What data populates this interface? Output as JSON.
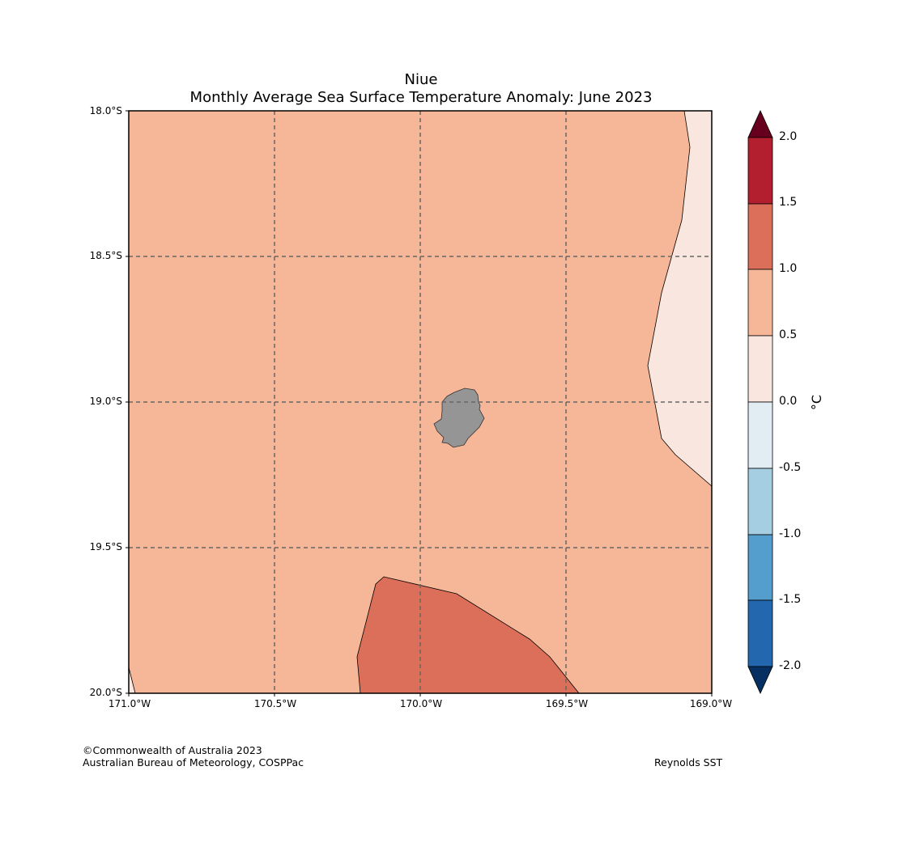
{
  "title": {
    "region": "Niue",
    "subtitle": "Monthly Average Sea Surface Temperature Anomaly: June 2023"
  },
  "map": {
    "lat_range": [
      -20.0,
      -18.0
    ],
    "lon_range": [
      -171.0,
      -169.0
    ],
    "grid": true,
    "land_color": "#959595",
    "lat_ticks": [
      "18.0°S",
      "18.5°S",
      "19.0°S",
      "19.5°S",
      "20.0°S"
    ],
    "lon_ticks": [
      "171.0°W",
      "170.5°W",
      "170.0°W",
      "169.5°W",
      "169.0°W"
    ],
    "regions": [
      {
        "name": "anomaly 0.5 to 1.0",
        "color": "#f6b799"
      },
      {
        "name": "anomaly 0.0 to 0.5",
        "color": "#f9e6de"
      },
      {
        "name": "anomaly 1.0 to 1.5",
        "color": "#dc6f59"
      }
    ]
  },
  "colorbar": {
    "unit": "°C",
    "ticks": [
      "2.0",
      "1.5",
      "1.0",
      "0.5",
      "0.0",
      "-0.5",
      "-1.0",
      "-1.5",
      "-2.0"
    ],
    "colors": [
      "#b41f2f",
      "#dc6f59",
      "#f6b799",
      "#f9e6de",
      "#e1edf3",
      "#a6cee2",
      "#539ecd",
      "#2368ae"
    ],
    "over_color": "#67001f",
    "under_color": "#053061"
  },
  "footer": {
    "copyright": "©Commonwealth of Australia 2023",
    "agency": "Australian Bureau of Meteorology, COSPPac",
    "source": "Reynolds SST"
  }
}
